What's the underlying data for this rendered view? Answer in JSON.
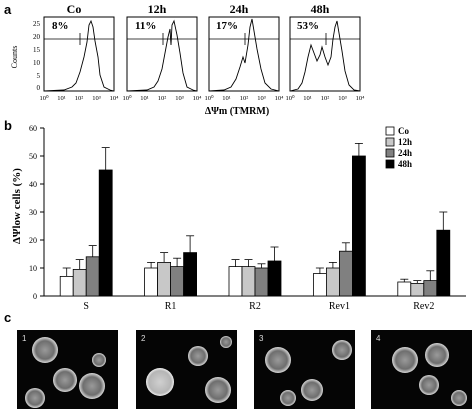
{
  "panels": {
    "a": "a",
    "b": "b",
    "c": "c"
  },
  "panel_a": {
    "ylabel": "Counts",
    "xlabel": "ΔΨm (TMRM)",
    "yticks": [
      "25",
      "20",
      "15",
      "10",
      "5",
      "0"
    ],
    "histograms": [
      {
        "title": "Co",
        "percent": "8%"
      },
      {
        "title": "12h",
        "percent": "11%"
      },
      {
        "title": "24h",
        "percent": "17%"
      },
      {
        "title": "48h",
        "percent": "53%"
      }
    ]
  },
  "chart_data": {
    "type": "bar",
    "ylabel": "ΔΨlow cells (%)",
    "xlabel": "",
    "ylim": [
      0,
      60
    ],
    "yticks": [
      0,
      10,
      20,
      30,
      40,
      50,
      60
    ],
    "categories": [
      "S",
      "R1",
      "R2",
      "Rev1",
      "Rev2"
    ],
    "legend_position": "top-right",
    "series": [
      {
        "name": "Co",
        "color": "#ffffff",
        "values": [
          7,
          10,
          10.5,
          8,
          5
        ],
        "errors": [
          3,
          2,
          2.5,
          2,
          1
        ]
      },
      {
        "name": "12h",
        "color": "#c8c8c8",
        "values": [
          9.5,
          12,
          10.5,
          10,
          4.5
        ],
        "errors": [
          3.5,
          3.5,
          2.5,
          2,
          1
        ]
      },
      {
        "name": "24h",
        "color": "#808080",
        "values": [
          14,
          10.5,
          10,
          16,
          5.5
        ],
        "errors": [
          4,
          3,
          1.5,
          3,
          3.5
        ]
      },
      {
        "name": "48h",
        "color": "#000000",
        "values": [
          45,
          15.5,
          12.5,
          50,
          23.5
        ],
        "errors": [
          8,
          6,
          5,
          4.5,
          6.5
        ]
      }
    ]
  },
  "panel_c": {
    "images": [
      {
        "label": "1"
      },
      {
        "label": "2"
      },
      {
        "label": "3"
      },
      {
        "label": "4"
      }
    ]
  }
}
